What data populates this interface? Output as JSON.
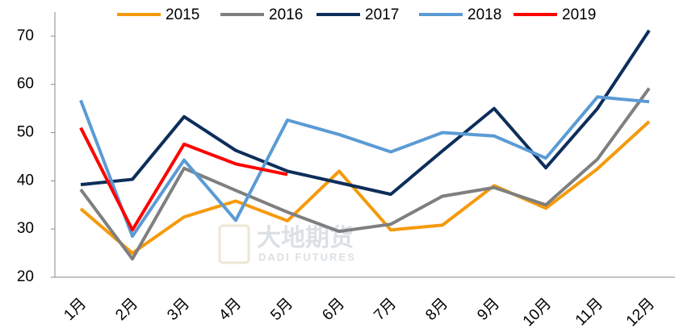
{
  "chart_data": {
    "type": "line",
    "categories": [
      "1月",
      "2月",
      "3月",
      "4月",
      "5月",
      "6月",
      "7月",
      "8月",
      "9月",
      "10月",
      "11月",
      "12月"
    ],
    "series": [
      {
        "name": "2015",
        "color": "#f59a0c",
        "values": [
          34.2,
          25,
          32.5,
          35.8,
          31.7,
          42,
          29.8,
          30.8,
          39,
          34.3,
          42.5,
          52.3
        ]
      },
      {
        "name": "2016",
        "color": "#7f7f7f",
        "values": [
          38.2,
          23.8,
          42.6,
          38,
          33.5,
          29.5,
          31,
          36.8,
          38.6,
          35,
          44.5,
          59.2
        ]
      },
      {
        "name": "2017",
        "color": "#0d2e5a",
        "values": [
          39.2,
          40.3,
          53.3,
          46.3,
          42,
          39.6,
          37.2,
          46.2,
          55,
          42.7,
          55,
          71.2
        ]
      },
      {
        "name": "2018",
        "color": "#5b9bd5",
        "values": [
          56.7,
          28.5,
          44.3,
          31.8,
          52.6,
          49.6,
          46,
          50,
          49.3,
          44.7,
          57.4,
          56.4
        ]
      },
      {
        "name": "2019",
        "color": "#ff0000",
        "values": [
          51,
          29.8,
          47.6,
          43.5,
          41.3,
          null,
          null,
          null,
          null,
          null,
          null,
          null
        ]
      }
    ],
    "ylim": [
      20,
      75
    ],
    "yticks": [
      20,
      30,
      40,
      50,
      60,
      70
    ],
    "grid": false,
    "legend": "top",
    "watermark": [
      "大地期货",
      "DADI FUTURES"
    ]
  }
}
